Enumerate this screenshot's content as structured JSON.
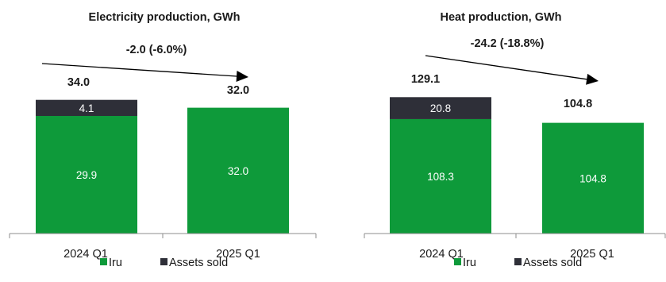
{
  "colors": {
    "iru": "#0e9a3a",
    "assets_sold": "#2e2f38",
    "axis": "#8c8c8c",
    "text": "#1a1a1a",
    "seg_label": "#ffffff"
  },
  "chart_data": [
    {
      "type": "bar",
      "stacked": true,
      "title": "Electricity production, GWh",
      "categories": [
        "2024 Q1",
        "2025 Q1"
      ],
      "series": [
        {
          "name": "Iru",
          "values": [
            29.9,
            32.0
          ]
        },
        {
          "name": "Assets sold",
          "values": [
            4.1,
            0
          ]
        }
      ],
      "segment_labels": [
        [
          "29.9",
          "4.1"
        ],
        [
          "32.0",
          ""
        ]
      ],
      "totals": [
        "34.0",
        "32.0"
      ],
      "change_label": "-2.0 (-6.0%)",
      "legend": [
        "Iru",
        "Assets sold"
      ],
      "legend_position": "bottom",
      "grid": false,
      "ylim": [
        0,
        36
      ]
    },
    {
      "type": "bar",
      "stacked": true,
      "title": "Heat production, GWh",
      "categories": [
        "2024 Q1",
        "2025 Q1"
      ],
      "series": [
        {
          "name": "Iru",
          "values": [
            108.3,
            104.8
          ]
        },
        {
          "name": "Assets sold",
          "values": [
            20.8,
            0
          ]
        }
      ],
      "segment_labels": [
        [
          "108.3",
          "20.8"
        ],
        [
          "104.8",
          ""
        ]
      ],
      "totals": [
        "129.1",
        "104.8"
      ],
      "change_label": "-24.2 (-18.8%)",
      "legend": [
        "Iru",
        "Assets sold"
      ],
      "legend_position": "bottom",
      "grid": false,
      "ylim": [
        0,
        137
      ]
    }
  ]
}
